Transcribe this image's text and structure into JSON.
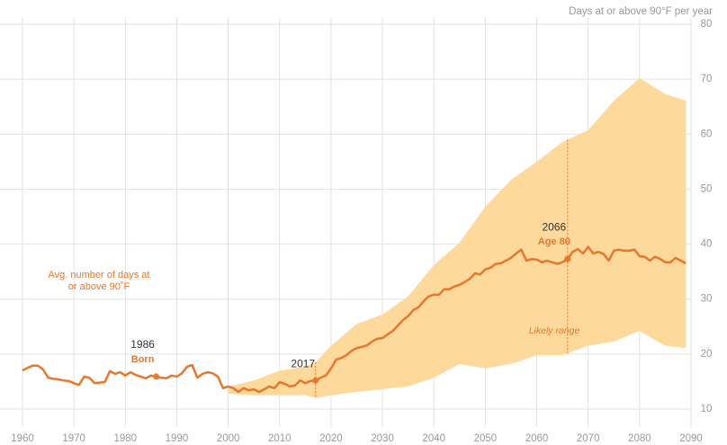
{
  "chart_data": {
    "type": "line",
    "y_axis_label": "Days at or above 90°F per year",
    "x": [
      1960,
      1961,
      1962,
      1963,
      1964,
      1965,
      1966,
      1967,
      1968,
      1969,
      1970,
      1971,
      1972,
      1973,
      1974,
      1975,
      1976,
      1977,
      1978,
      1979,
      1980,
      1981,
      1982,
      1983,
      1984,
      1985,
      1986,
      1987,
      1988,
      1989,
      1990,
      1991,
      1992,
      1993,
      1994,
      1995,
      1996,
      1997,
      1998,
      1999,
      2000,
      2001,
      2002,
      2003,
      2004,
      2005,
      2006,
      2007,
      2008,
      2009,
      2010,
      2011,
      2012,
      2013,
      2014,
      2015,
      2016,
      2017,
      2018,
      2019,
      2020,
      2021,
      2022,
      2023,
      2024,
      2025,
      2026,
      2027,
      2028,
      2029,
      2030,
      2031,
      2032,
      2033,
      2034,
      2035,
      2036,
      2037,
      2038,
      2039,
      2040,
      2041,
      2042,
      2043,
      2044,
      2045,
      2046,
      2047,
      2048,
      2049,
      2050,
      2051,
      2052,
      2053,
      2054,
      2055,
      2056,
      2057,
      2058,
      2059,
      2060,
      2061,
      2062,
      2063,
      2064,
      2065,
      2066,
      2067,
      2068,
      2069,
      2070,
      2071,
      2072,
      2073,
      2074,
      2075,
      2076,
      2077,
      2078,
      2079,
      2080,
      2081,
      2082,
      2083,
      2084,
      2085,
      2086,
      2087,
      2088,
      2089
    ],
    "series": [
      {
        "name": "Avg. number of days at or above 90˚F",
        "color": "#e8772e",
        "values": [
          17.0,
          17.5,
          17.9,
          17.9,
          17.2,
          15.7,
          15.5,
          15.4,
          15.2,
          15.1,
          14.7,
          14.4,
          15.9,
          15.7,
          14.7,
          14.8,
          14.9,
          16.9,
          16.4,
          16.7,
          16.1,
          16.7,
          16.2,
          15.9,
          15.6,
          16.1,
          15.9,
          15.7,
          15.6,
          16.1,
          15.9,
          16.5,
          17.7,
          18.0,
          15.7,
          16.4,
          16.7,
          16.5,
          15.9,
          13.8,
          14.1,
          13.8,
          13.1,
          13.8,
          13.4,
          13.6,
          13.1,
          13.6,
          14.1,
          13.8,
          14.9,
          14.6,
          14.1,
          14.3,
          15.2,
          14.7,
          15.1,
          15.2,
          15.7,
          16.1,
          17.4,
          19.0,
          19.3,
          19.8,
          20.6,
          21.1,
          21.3,
          21.6,
          22.3,
          22.8,
          22.9,
          23.6,
          24.2,
          25.2,
          26.2,
          26.9,
          28.0,
          28.5,
          29.6,
          30.5,
          30.8,
          30.8,
          31.8,
          31.8,
          32.3,
          32.6,
          33.1,
          33.7,
          34.7,
          34.5,
          35.4,
          35.7,
          36.4,
          36.5,
          37.0,
          37.5,
          38.3,
          39.0,
          37.0,
          37.3,
          37.2,
          36.7,
          37.0,
          36.7,
          36.4,
          36.7,
          37.3,
          38.6,
          39.1,
          38.3,
          39.5,
          38.3,
          38.6,
          38.2,
          37.0,
          38.8,
          39.0,
          38.8,
          38.8,
          39.0,
          37.8,
          37.7,
          37.0,
          37.7,
          37.3,
          36.7,
          36.7,
          37.5,
          37.0,
          36.5
        ]
      }
    ],
    "band": {
      "name": "Likely range",
      "color": "#fdda9c",
      "x": [
        2000,
        2005,
        2010,
        2015,
        2017,
        2020,
        2025,
        2030,
        2035,
        2040,
        2045,
        2050,
        2055,
        2060,
        2065,
        2070,
        2075,
        2080,
        2085,
        2089
      ],
      "upper": [
        14.1,
        15.2,
        17.0,
        17.7,
        18.5,
        21.5,
        25.5,
        27.2,
        30.5,
        36.2,
        40.3,
        46.8,
        51.7,
        55.0,
        58.6,
        60.7,
        66.1,
        70.2,
        67.3,
        66.1
      ],
      "lower": [
        12.8,
        12.5,
        12.5,
        12.5,
        12.0,
        12.5,
        13.1,
        13.6,
        14.1,
        15.7,
        18.2,
        17.4,
        18.2,
        19.8,
        19.8,
        21.5,
        22.3,
        24.2,
        21.5,
        21.1
      ]
    },
    "annotations": [
      {
        "x": 1986,
        "note": "Born"
      },
      {
        "x": 2017
      },
      {
        "x": 2066,
        "note": "Age 80"
      }
    ],
    "xlim": [
      1960,
      2090
    ],
    "xticks": [
      1960,
      1970,
      1980,
      1990,
      2000,
      2010,
      2020,
      2030,
      2040,
      2050,
      2060,
      2070,
      2080,
      2090
    ],
    "ylim": [
      10,
      80
    ],
    "yticks": [
      10,
      20,
      30,
      40,
      50,
      60,
      70,
      80
    ],
    "grid": true
  }
}
